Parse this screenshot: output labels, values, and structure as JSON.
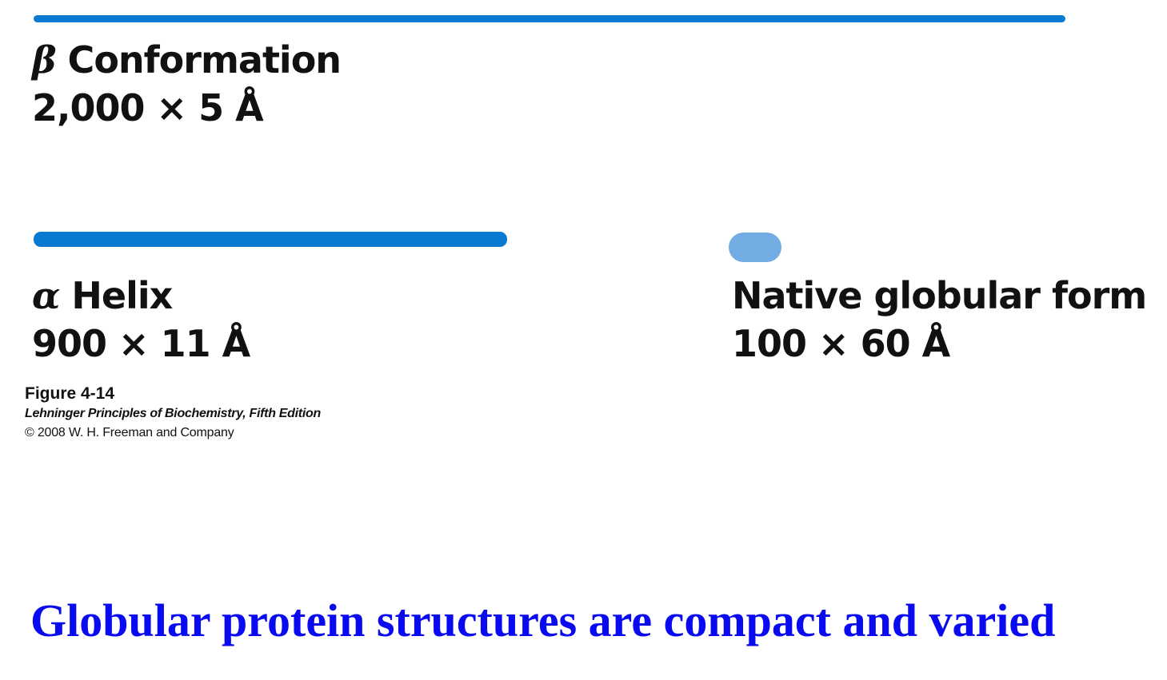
{
  "colors": {
    "strand": "#0a7ad1",
    "globule": "#72ace3",
    "title": "#0a0af0"
  },
  "beta": {
    "greek": "β",
    "name": " Conformation",
    "dimensions": "2,000 × 5 Å"
  },
  "alpha": {
    "greek": "α",
    "name": " Helix",
    "dimensions": "900 × 11 Å"
  },
  "native": {
    "name": "Native globular form",
    "dimensions": "100 × 60 Å"
  },
  "caption": {
    "figure": "Figure 4-14",
    "book": "Lehninger Principles of Biochemistry, Fifth Edition",
    "copyright": "© 2008 W. H. Freeman and Company"
  },
  "slide_title": "Globular protein structures are compact and varied"
}
